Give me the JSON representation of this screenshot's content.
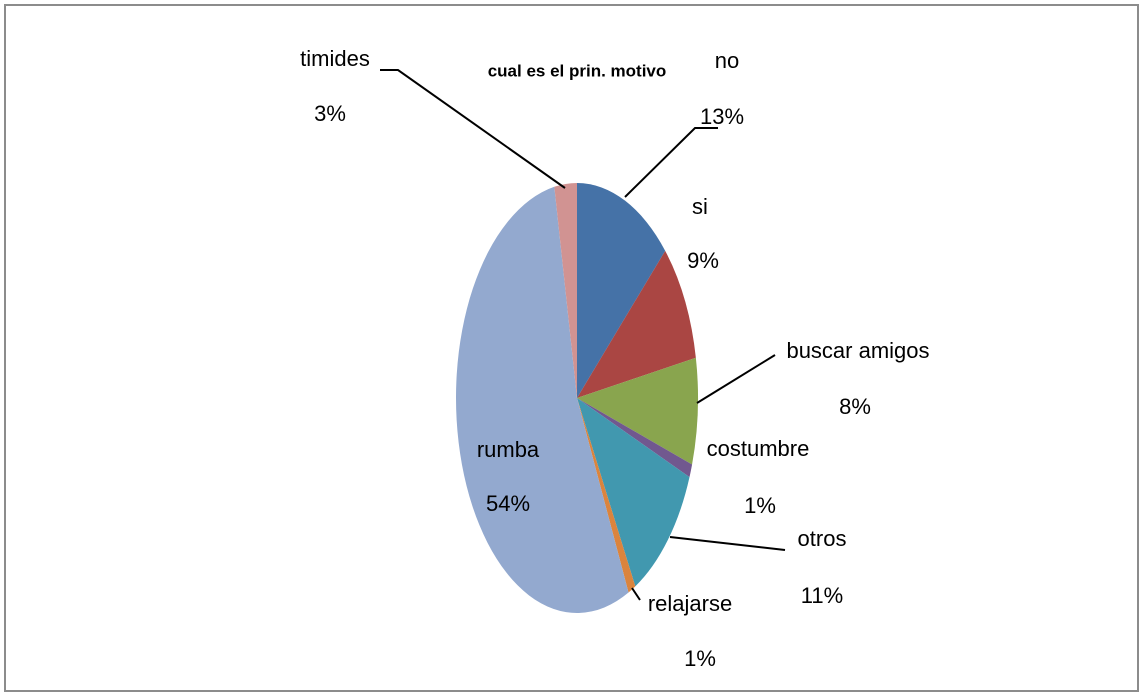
{
  "chart_data": {
    "type": "pie",
    "title": "cual es el prin. motivo",
    "categories": [
      "no",
      "si",
      "buscar amigos",
      "costumbre",
      "otros",
      "relajarse",
      "rumba",
      "timides"
    ],
    "values": [
      13,
      9,
      8,
      1,
      11,
      1,
      54,
      3
    ],
    "value_labels": [
      "13%",
      "9%",
      "8%",
      "1%",
      "11%",
      "1%",
      "54%",
      "3%"
    ],
    "colors": [
      "#4572a7",
      "#aa4643",
      "#89a54e",
      "#71588f",
      "#4198af",
      "#db843d",
      "#93a9cf",
      "#d19392"
    ]
  }
}
